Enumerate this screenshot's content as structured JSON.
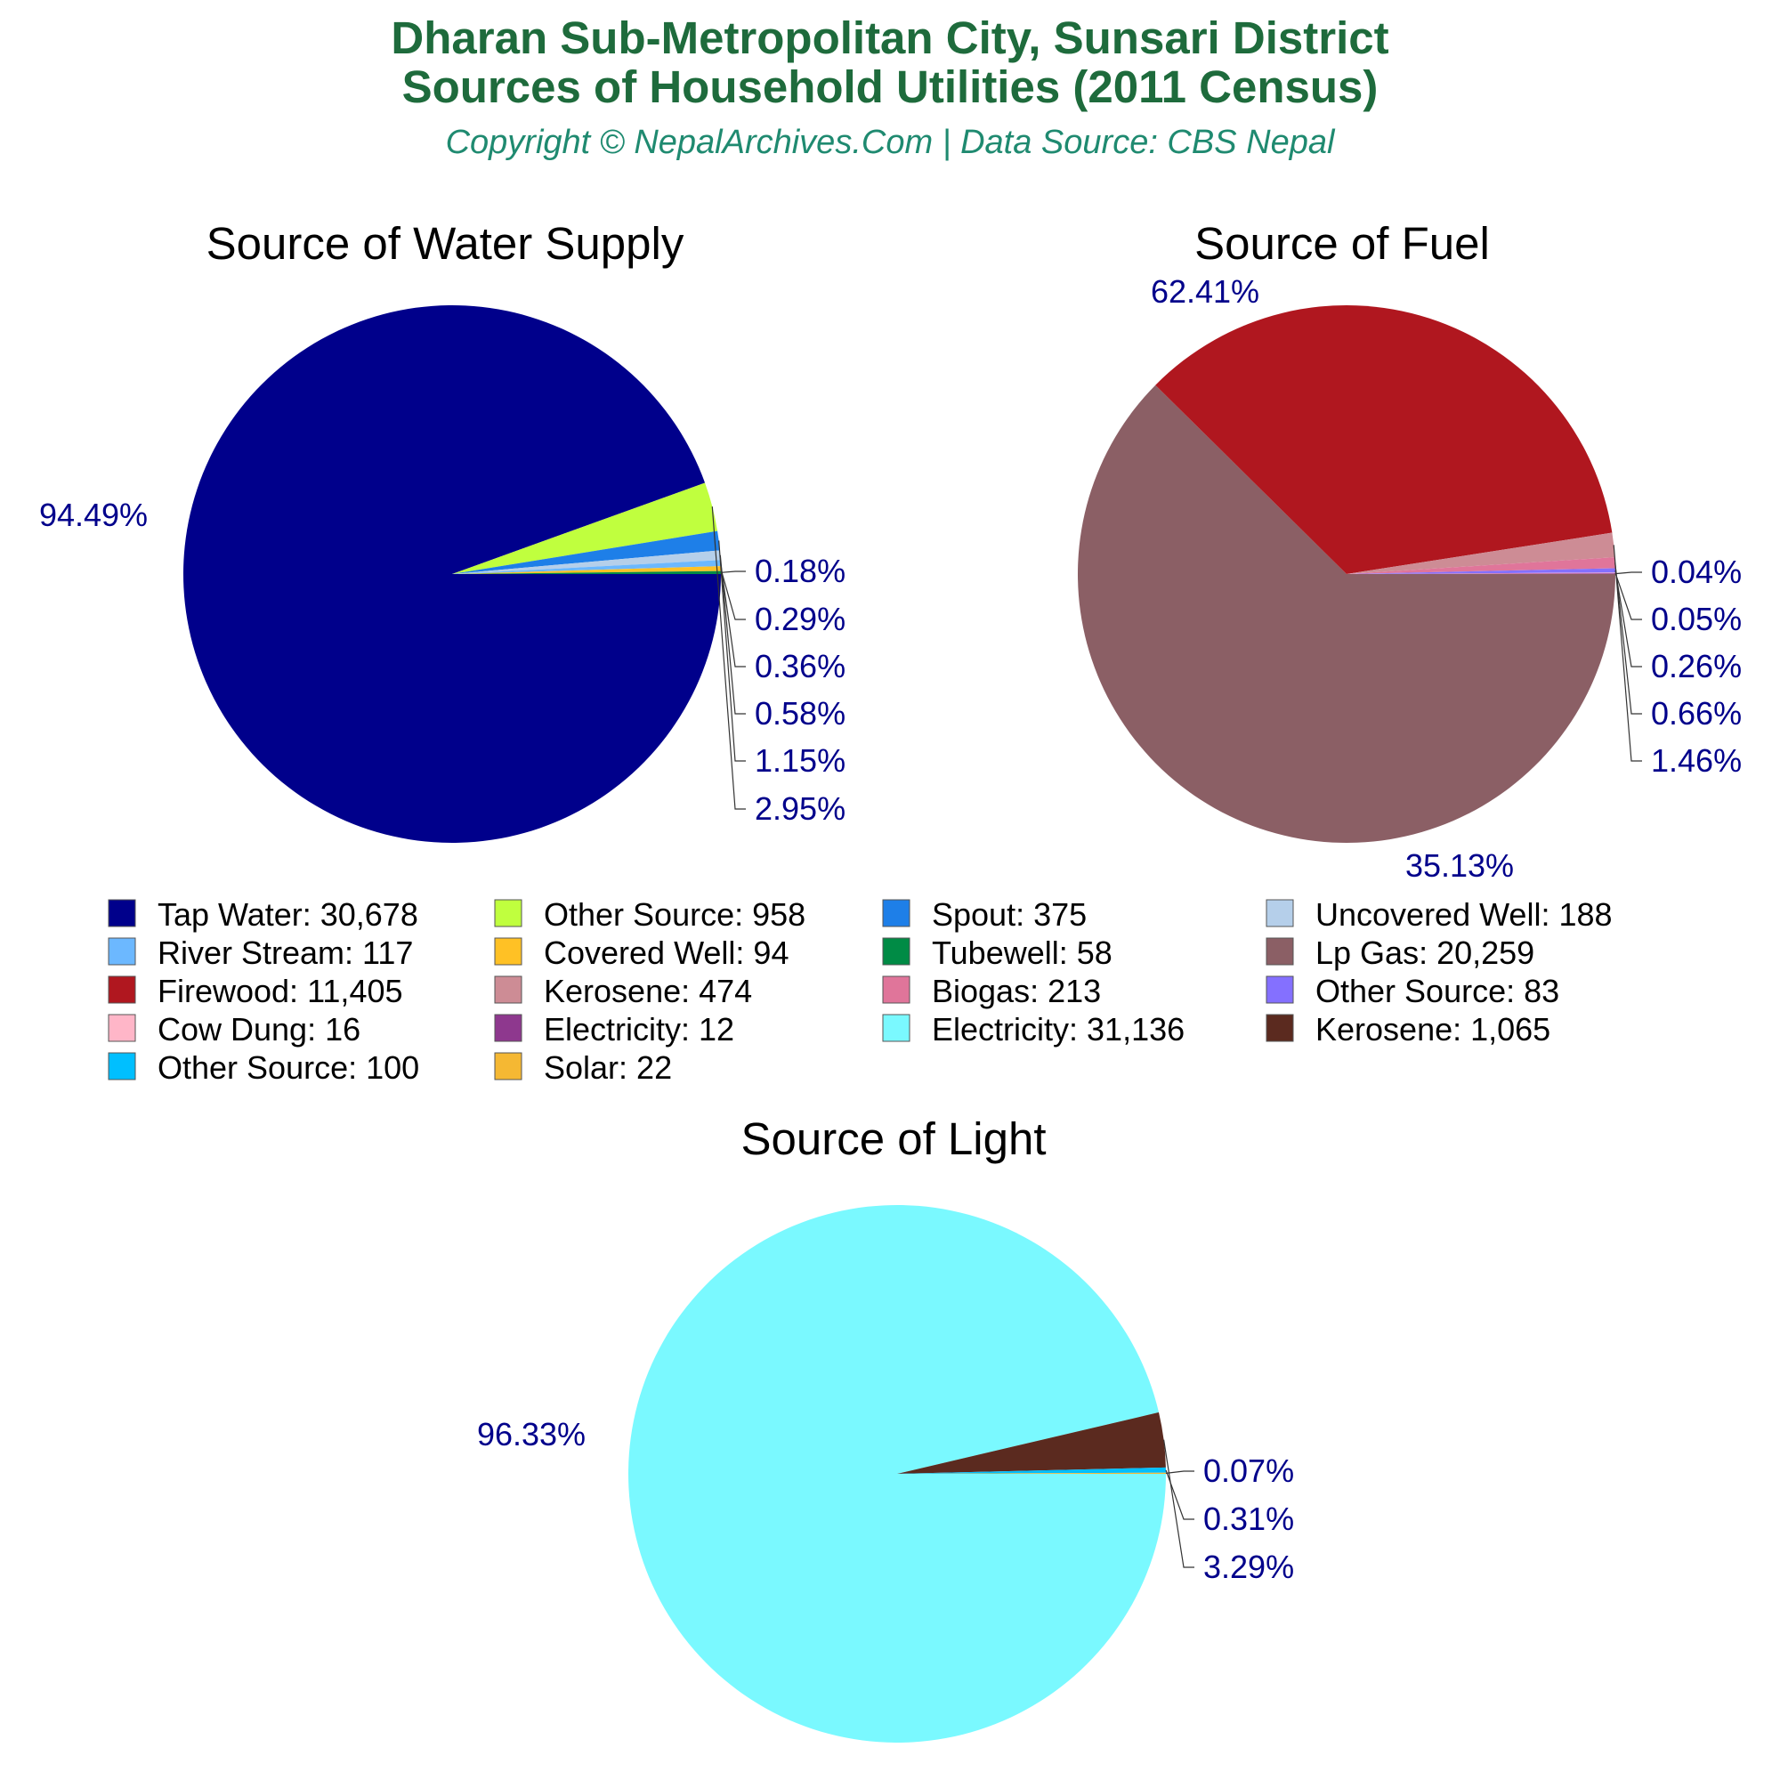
{
  "header": {
    "title_line1": "Dharan Sub-Metropolitan City, Sunsari District",
    "title_line2": "Sources of Household Utilities (2011 Census)",
    "copyright": "Copyright © NepalArchives.Com | Data Source: CBS Nepal"
  },
  "colors": {
    "title": "#1e6b3c",
    "copyright": "#1f8a70",
    "percent_label": "#00008b"
  },
  "chart_data": [
    {
      "type": "pie",
      "title": "Source of Water Supply",
      "slices": [
        {
          "label": "Tap Water",
          "value": 30678,
          "display_value": "30,678",
          "percent": "94.49%",
          "color": "#00008b"
        },
        {
          "label": "Other Source",
          "value": 958,
          "display_value": "958",
          "percent": "2.95%",
          "color": "#c0ff3e"
        },
        {
          "label": "Spout",
          "value": 375,
          "display_value": "375",
          "percent": "1.15%",
          "color": "#1e7fe8"
        },
        {
          "label": "Uncovered Well",
          "value": 188,
          "display_value": "188",
          "percent": "0.58%",
          "color": "#b5cfea"
        },
        {
          "label": "River Stream",
          "value": 117,
          "display_value": "117",
          "percent": "0.36%",
          "color": "#6cb8ff"
        },
        {
          "label": "Covered Well",
          "value": 94,
          "display_value": "94",
          "percent": "0.29%",
          "color": "#ffc125"
        },
        {
          "label": "Tubewell",
          "value": 58,
          "display_value": "58",
          "percent": "0.18%",
          "color": "#008b45"
        }
      ]
    },
    {
      "type": "pie",
      "title": "Source of Fuel",
      "slices": [
        {
          "label": "Lp Gas",
          "value": 20259,
          "display_value": "20,259",
          "percent": "62.41%",
          "color": "#8b5f65"
        },
        {
          "label": "Firewood",
          "value": 11405,
          "display_value": "11,405",
          "percent": "35.13%",
          "color": "#b0171f"
        },
        {
          "label": "Kerosene",
          "value": 474,
          "display_value": "474",
          "percent": "1.46%",
          "color": "#cd8c95"
        },
        {
          "label": "Biogas",
          "value": 213,
          "display_value": "213",
          "percent": "0.66%",
          "color": "#e0759a"
        },
        {
          "label": "Other Source",
          "value": 83,
          "display_value": "83",
          "percent": "0.26%",
          "color": "#8470ff"
        },
        {
          "label": "Cow Dung",
          "value": 16,
          "display_value": "16",
          "percent": "0.05%",
          "color": "#ffb6c8"
        },
        {
          "label": "Electricity",
          "value": 12,
          "display_value": "12",
          "percent": "0.04%",
          "color": "#8e388e"
        }
      ]
    },
    {
      "type": "pie",
      "title": "Source of Light",
      "slices": [
        {
          "label": "Electricity",
          "value": 31136,
          "display_value": "31,136",
          "percent": "96.33%",
          "color": "#7af9ff"
        },
        {
          "label": "Kerosene",
          "value": 1065,
          "display_value": "1,065",
          "percent": "3.29%",
          "color": "#5b2a1f"
        },
        {
          "label": "Other Source",
          "value": 100,
          "display_value": "100",
          "percent": "0.31%",
          "color": "#00bfff"
        },
        {
          "label": "Solar",
          "value": 22,
          "display_value": "22",
          "percent": "0.07%",
          "color": "#f5b833"
        }
      ]
    }
  ],
  "legend": {
    "columns": 4,
    "items": [
      {
        "text": "Tap Water: 30,678",
        "color": "#00008b"
      },
      {
        "text": "Other Source: 958",
        "color": "#c0ff3e"
      },
      {
        "text": "Spout: 375",
        "color": "#1e7fe8"
      },
      {
        "text": "Uncovered Well: 188",
        "color": "#b5cfea"
      },
      {
        "text": "River Stream: 117",
        "color": "#6cb8ff"
      },
      {
        "text": "Covered Well: 94",
        "color": "#ffc125"
      },
      {
        "text": "Tubewell: 58",
        "color": "#008b45"
      },
      {
        "text": "Lp Gas: 20,259",
        "color": "#8b5f65"
      },
      {
        "text": "Firewood: 11,405",
        "color": "#b0171f"
      },
      {
        "text": "Kerosene: 474",
        "color": "#cd8c95"
      },
      {
        "text": "Biogas: 213",
        "color": "#e0759a"
      },
      {
        "text": "Other Source: 83",
        "color": "#8470ff"
      },
      {
        "text": "Cow Dung: 16",
        "color": "#ffb6c8"
      },
      {
        "text": "Electricity: 12",
        "color": "#8e388e"
      },
      {
        "text": "Electricity: 31,136",
        "color": "#7af9ff"
      },
      {
        "text": "Kerosene: 1,065",
        "color": "#5b2a1f"
      },
      {
        "text": "Other Source: 100",
        "color": "#00bfff"
      },
      {
        "text": "Solar: 22",
        "color": "#f5b833"
      }
    ]
  }
}
